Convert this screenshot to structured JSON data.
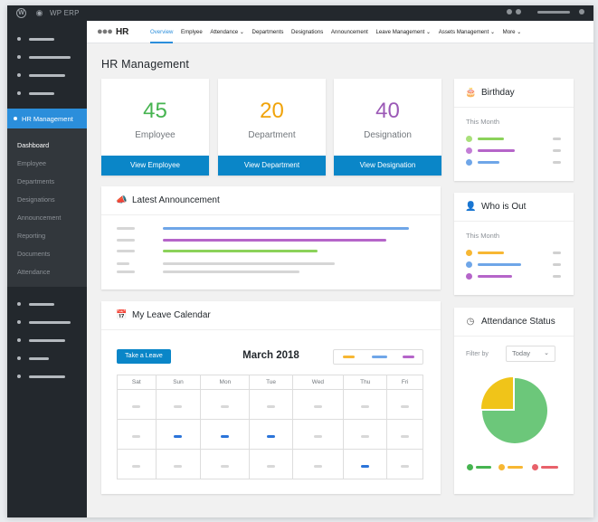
{
  "adminbar": {
    "brand": "WP ERP"
  },
  "sidebar": {
    "active_label": "HR Management",
    "submenu": [
      "Dashboard",
      "Employee",
      "Departments",
      "Designations",
      "Announcement",
      "Reporting",
      "Documents",
      "Attendance"
    ]
  },
  "topnav": {
    "title": "HR",
    "items": [
      {
        "label": "Overview"
      },
      {
        "label": "Emplyee"
      },
      {
        "label": "Attendance ⌄"
      },
      {
        "label": "Departments"
      },
      {
        "label": "Designations"
      },
      {
        "label": "Announcement"
      },
      {
        "label": "Leave Management ⌄"
      },
      {
        "label": "Assets Management ⌄"
      },
      {
        "label": "More ⌄"
      }
    ]
  },
  "page": {
    "title": "HR Management"
  },
  "stats": [
    {
      "value": "45",
      "label": "Employee",
      "button": "View Employee",
      "color": "#46b450"
    },
    {
      "value": "20",
      "label": "Department",
      "button": "View Department",
      "color": "#f0a30a"
    },
    {
      "value": "40",
      "label": "Designation",
      "button": "View Designation",
      "color": "#9b59b6"
    }
  ],
  "announcement": {
    "title": "Latest Announcement"
  },
  "calendar": {
    "title": "My Leave Calendar",
    "button": "Take a Leave",
    "month": "March 2018",
    "days": [
      "Sat",
      "Sun",
      "Mon",
      "Tue",
      "Wed",
      "Thu",
      "Fri"
    ]
  },
  "birthday": {
    "title": "Birthday",
    "subtitle": "This Month"
  },
  "who_is_out": {
    "title": "Who is Out",
    "subtitle": "This Month"
  },
  "attendance": {
    "title": "Attendance Status",
    "filter_label": "Filter by",
    "filter_value": "Today",
    "slices": [
      {
        "color": "#6cc77a",
        "fraction": 0.75
      },
      {
        "color": "#f0c419",
        "fraction": 0.25
      }
    ]
  },
  "colors": {
    "accent": "#0a86c8",
    "green": "#8bd25a",
    "purple": "#b565c9",
    "blue": "#6fa6e8",
    "orange": "#f7b733",
    "pink": "#e8616a"
  }
}
